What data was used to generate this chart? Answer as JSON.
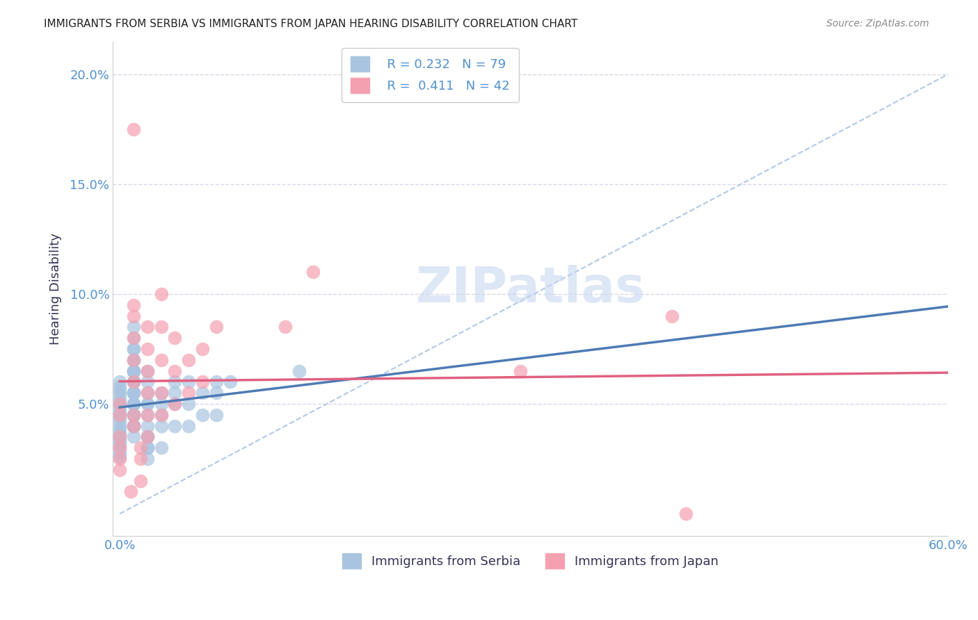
{
  "title": "IMMIGRANTS FROM SERBIA VS IMMIGRANTS FROM JAPAN HEARING DISABILITY CORRELATION CHART",
  "source": "Source: ZipAtlas.com",
  "ylabel": "Hearing Disability",
  "xlabel": "",
  "watermark": "ZIPatlas",
  "serbia_R": 0.232,
  "serbia_N": 79,
  "japan_R": 0.411,
  "japan_N": 42,
  "xlim": [
    0.0,
    0.6
  ],
  "ylim": [
    -0.01,
    0.215
  ],
  "xticks": [
    0.0,
    0.1,
    0.2,
    0.3,
    0.4,
    0.5,
    0.6
  ],
  "xtick_labels": [
    "0.0%",
    "",
    "",
    "",
    "",
    "",
    "60.0%"
  ],
  "yticks": [
    0.0,
    0.05,
    0.1,
    0.15,
    0.2
  ],
  "ytick_labels": [
    "",
    "5.0%",
    "10.0%",
    "15.0%",
    "20.0%"
  ],
  "serbia_color": "#a8c4e0",
  "japan_color": "#f4a0b0",
  "serbia_line_color": "#4d7ab5",
  "japan_line_color": "#e06080",
  "dashed_line_color": "#b0c8e8",
  "grid_color": "#d8d8e8",
  "background_color": "#ffffff",
  "serbia_x": [
    0.01,
    0.01,
    0.01,
    0.01,
    0.01,
    0.01,
    0.01,
    0.01,
    0.01,
    0.01,
    0.01,
    0.01,
    0.01,
    0.01,
    0.01,
    0.01,
    0.01,
    0.01,
    0.01,
    0.01,
    0.01,
    0.01,
    0.01,
    0.01,
    0.01,
    0.01,
    0.01,
    0.01,
    0.01,
    0.01,
    0.02,
    0.02,
    0.02,
    0.02,
    0.02,
    0.02,
    0.02,
    0.02,
    0.02,
    0.02,
    0.02,
    0.02,
    0.03,
    0.03,
    0.03,
    0.03,
    0.03,
    0.04,
    0.04,
    0.04,
    0.04,
    0.05,
    0.05,
    0.05,
    0.06,
    0.06,
    0.07,
    0.07,
    0.07,
    0.08,
    0.0,
    0.0,
    0.0,
    0.0,
    0.0,
    0.0,
    0.0,
    0.0,
    0.0,
    0.0,
    0.0,
    0.0,
    0.0,
    0.0,
    0.0,
    0.0,
    0.0,
    0.0,
    0.13
  ],
  "serbia_y": [
    0.085,
    0.08,
    0.075,
    0.075,
    0.07,
    0.07,
    0.065,
    0.065,
    0.065,
    0.065,
    0.06,
    0.06,
    0.06,
    0.055,
    0.055,
    0.055,
    0.055,
    0.05,
    0.05,
    0.05,
    0.05,
    0.045,
    0.045,
    0.045,
    0.045,
    0.04,
    0.04,
    0.04,
    0.04,
    0.035,
    0.065,
    0.06,
    0.055,
    0.05,
    0.05,
    0.045,
    0.04,
    0.035,
    0.035,
    0.03,
    0.03,
    0.025,
    0.055,
    0.05,
    0.045,
    0.04,
    0.03,
    0.06,
    0.055,
    0.05,
    0.04,
    0.06,
    0.05,
    0.04,
    0.055,
    0.045,
    0.06,
    0.055,
    0.045,
    0.06,
    0.06,
    0.058,
    0.056,
    0.054,
    0.052,
    0.05,
    0.048,
    0.046,
    0.044,
    0.042,
    0.04,
    0.038,
    0.036,
    0.034,
    0.032,
    0.03,
    0.028,
    0.026,
    0.065
  ],
  "japan_x": [
    0.01,
    0.01,
    0.01,
    0.01,
    0.01,
    0.01,
    0.01,
    0.01,
    0.02,
    0.02,
    0.02,
    0.02,
    0.02,
    0.02,
    0.03,
    0.03,
    0.03,
    0.03,
    0.03,
    0.04,
    0.04,
    0.04,
    0.05,
    0.05,
    0.06,
    0.06,
    0.07,
    0.12,
    0.14,
    0.0,
    0.0,
    0.0,
    0.0,
    0.0,
    0.0,
    0.29,
    0.4,
    0.41,
    0.015,
    0.015,
    0.008,
    0.015
  ],
  "japan_y": [
    0.175,
    0.095,
    0.09,
    0.08,
    0.07,
    0.06,
    0.045,
    0.04,
    0.085,
    0.075,
    0.065,
    0.055,
    0.045,
    0.035,
    0.1,
    0.085,
    0.07,
    0.055,
    0.045,
    0.08,
    0.065,
    0.05,
    0.07,
    0.055,
    0.075,
    0.06,
    0.085,
    0.085,
    0.11,
    0.05,
    0.045,
    0.035,
    0.03,
    0.025,
    0.02,
    0.065,
    0.09,
    0.0,
    0.03,
    0.025,
    0.01,
    0.015
  ]
}
